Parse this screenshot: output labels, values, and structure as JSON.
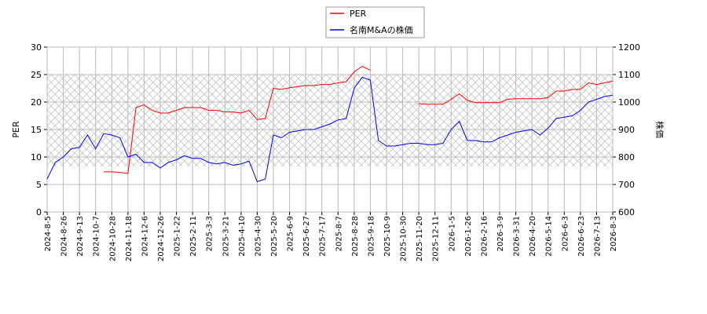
{
  "chart_data": {
    "type": "line",
    "categories": [
      "2024-8-5",
      null,
      "2024-8-26",
      null,
      "2024-9-13",
      null,
      "2024-10-7",
      null,
      "2024-10-28",
      null,
      "2024-11-18",
      null,
      "2024-12-6",
      null,
      "2024-12-26",
      null,
      "2025-1-22",
      null,
      "2025-2-11",
      null,
      "2025-3-3",
      null,
      "2025-3-21",
      null,
      "2025-4-10",
      null,
      "2025-4-30",
      null,
      "2025-5-20",
      null,
      "2025-6-9",
      null,
      "2025-6-27",
      null,
      "2025-7-17",
      null,
      "2025-8-7",
      null,
      "2025-8-28",
      null,
      "2025-9-18",
      null,
      "2025-10-9",
      null,
      "2025-10-30",
      null,
      "2025-11-20",
      null,
      "2025-12-11",
      null,
      "2026-1-5",
      null,
      "2026-1-26",
      null,
      "2026-2-16",
      null,
      "2026-3-9",
      null,
      "2026-3-31",
      null,
      "2026-4-20",
      null,
      "2026-5-14",
      null,
      "2026-6-3",
      null,
      "2026-6-23",
      null,
      "2026-7-13",
      null,
      "2026-8-3"
    ],
    "series": [
      {
        "name": "PER",
        "color": "#ff0000",
        "values": [
          null,
          null,
          null,
          null,
          null,
          null,
          null,
          7.3,
          7.3,
          7.2,
          7.0,
          19.0,
          19.5,
          18.5,
          18.0,
          18.0,
          18.5,
          19.0,
          19.0,
          19.0,
          18.5,
          18.5,
          18.2,
          18.2,
          18.0,
          18.5,
          16.8,
          17.0,
          22.5,
          22.3,
          22.6,
          22.8,
          23.0,
          23.0,
          23.2,
          23.2,
          23.5,
          23.7,
          25.5,
          26.5,
          25.8,
          null,
          null,
          null,
          null,
          null,
          19.7,
          19.6,
          19.6,
          19.6,
          20.5,
          21.5,
          20.3,
          19.9,
          19.9,
          19.9,
          19.9,
          20.5,
          20.6,
          20.6,
          20.6,
          20.6,
          20.8,
          22.0,
          22.0,
          22.3,
          22.3,
          23.5,
          23.2,
          23.5,
          23.8
        ]
      },
      {
        "name": "名南M&Aの株価",
        "color": "#0000ff",
        "axis": "y2",
        "values": [
          720,
          780,
          800,
          830,
          835,
          880,
          830,
          885,
          880,
          870,
          800,
          810,
          780,
          780,
          760,
          780,
          790,
          805,
          795,
          795,
          780,
          775,
          780,
          770,
          775,
          785,
          710,
          720,
          880,
          870,
          890,
          895,
          900,
          900,
          910,
          920,
          935,
          940,
          1050,
          1090,
          1080,
          860,
          840,
          840,
          845,
          850,
          850,
          845,
          845,
          850,
          900,
          930,
          860,
          860,
          855,
          855,
          870,
          880,
          890,
          895,
          900,
          880,
          905,
          940,
          945,
          950,
          970,
          1000,
          1010,
          1020,
          1025
        ]
      }
    ],
    "ylabel": "PER",
    "y2label": "株価",
    "ylim": [
      0,
      30
    ],
    "yticks": [
      0,
      5,
      10,
      15,
      20,
      25,
      30
    ],
    "y2lim": [
      600,
      1200
    ],
    "y2ticks": [
      600,
      700,
      800,
      900,
      1000,
      1100,
      1200
    ],
    "grid": true
  }
}
